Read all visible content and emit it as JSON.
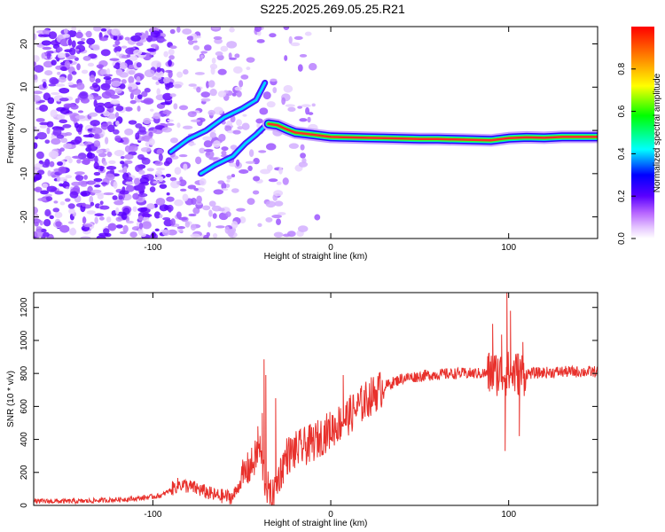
{
  "title": "S225.2025.269.05.25.R21",
  "chart_data": [
    {
      "type": "heatmap",
      "xlabel": "Height of straight line (km)",
      "ylabel": "Frequency (Hz)",
      "xlim": [
        -167,
        150
      ],
      "ylim": [
        -25,
        24
      ],
      "xticks": [
        -100,
        0,
        100
      ],
      "xtick_labels": [
        "-100",
        "0",
        "100"
      ],
      "yticks": [
        -20,
        -10,
        0,
        10,
        20
      ],
      "ytick_labels": [
        "-20",
        "-10",
        "0",
        "10",
        "20"
      ],
      "colorbar": {
        "label": "Normalized spectral amplitude",
        "range": [
          0,
          1
        ],
        "ticks": [
          0.0,
          0.2,
          0.4,
          0.6,
          0.8
        ],
        "tick_labels": [
          "0.0",
          "0.2",
          "0.4",
          "0.6",
          "0.8"
        ]
      },
      "signal_trace": [
        {
          "x": -35,
          "f": 1.5
        },
        {
          "x": -30,
          "f": 1.2
        },
        {
          "x": -25,
          "f": 0.3
        },
        {
          "x": -20,
          "f": -0.5
        },
        {
          "x": -10,
          "f": -1.0
        },
        {
          "x": 0,
          "f": -1.5
        },
        {
          "x": 10,
          "f": -1.6
        },
        {
          "x": 20,
          "f": -1.7
        },
        {
          "x": 30,
          "f": -1.8
        },
        {
          "x": 40,
          "f": -1.9
        },
        {
          "x": 50,
          "f": -2.0
        },
        {
          "x": 60,
          "f": -2.0
        },
        {
          "x": 70,
          "f": -2.1
        },
        {
          "x": 80,
          "f": -2.2
        },
        {
          "x": 90,
          "f": -2.3
        },
        {
          "x": 100,
          "f": -1.8
        },
        {
          "x": 110,
          "f": -1.6
        },
        {
          "x": 120,
          "f": -1.7
        },
        {
          "x": 130,
          "f": -1.5
        },
        {
          "x": 140,
          "f": -1.5
        },
        {
          "x": 150,
          "f": -1.5
        }
      ],
      "upper_arm": [
        {
          "x": -90,
          "f": -5
        },
        {
          "x": -80,
          "f": -2
        },
        {
          "x": -70,
          "f": 0
        },
        {
          "x": -60,
          "f": 3
        },
        {
          "x": -50,
          "f": 5
        },
        {
          "x": -42,
          "f": 7
        },
        {
          "x": -37,
          "f": 11
        }
      ],
      "lower_arm": [
        {
          "x": -73,
          "f": -10
        },
        {
          "x": -65,
          "f": -8
        },
        {
          "x": -55,
          "f": -6
        },
        {
          "x": -48,
          "f": -3
        },
        {
          "x": -42,
          "f": -1
        },
        {
          "x": -37,
          "f": 1
        }
      ]
    },
    {
      "type": "line",
      "xlabel": "Height of straight line (km)",
      "ylabel": "SNR (10 * v/v)",
      "xlim": [
        -167,
        150
      ],
      "ylim": [
        0,
        1290
      ],
      "xticks": [
        -100,
        0,
        100
      ],
      "xtick_labels": [
        "-100",
        "0",
        "100"
      ],
      "yticks": [
        0,
        200,
        400,
        600,
        800,
        1000,
        1200
      ],
      "ytick_labels": [
        "0",
        "200",
        "400",
        "600",
        "800",
        "1000",
        "1200"
      ],
      "series": [
        {
          "name": "SNR",
          "color": "#e8312c",
          "baseline": [
            {
              "x": -167,
              "y": 25
            },
            {
              "x": -140,
              "y": 25
            },
            {
              "x": -110,
              "y": 40
            },
            {
              "x": -95,
              "y": 60
            },
            {
              "x": -85,
              "y": 130
            },
            {
              "x": -75,
              "y": 100
            },
            {
              "x": -65,
              "y": 60
            },
            {
              "x": -55,
              "y": 50
            },
            {
              "x": -48,
              "y": 200
            },
            {
              "x": -44,
              "y": 250
            },
            {
              "x": -40,
              "y": 350
            },
            {
              "x": -37,
              "y": 150
            },
            {
              "x": -33,
              "y": 30
            },
            {
              "x": -30,
              "y": 150
            },
            {
              "x": -25,
              "y": 300
            },
            {
              "x": -20,
              "y": 330
            },
            {
              "x": -10,
              "y": 380
            },
            {
              "x": 0,
              "y": 460
            },
            {
              "x": 5,
              "y": 500
            },
            {
              "x": 12,
              "y": 560
            },
            {
              "x": 20,
              "y": 640
            },
            {
              "x": 30,
              "y": 720
            },
            {
              "x": 40,
              "y": 770
            },
            {
              "x": 55,
              "y": 790
            },
            {
              "x": 70,
              "y": 800
            },
            {
              "x": 90,
              "y": 800
            },
            {
              "x": 110,
              "y": 800
            },
            {
              "x": 130,
              "y": 810
            },
            {
              "x": 150,
              "y": 810
            }
          ],
          "spikes": [
            {
              "x": -37.5,
              "y": 885
            },
            {
              "x": -36.5,
              "y": 790
            },
            {
              "x": -38.5,
              "y": 560
            },
            {
              "x": -41,
              "y": 480
            },
            {
              "x": -31,
              "y": 650
            },
            {
              "x": 7,
              "y": 790
            },
            {
              "x": 91,
              "y": 1100
            },
            {
              "x": 96,
              "y": 1035
            },
            {
              "x": 98,
              "y": 330
            },
            {
              "x": 99,
              "y": 1300
            },
            {
              "x": 101,
              "y": 1180
            },
            {
              "x": 106,
              "y": 420
            },
            {
              "x": 108,
              "y": 990
            }
          ]
        }
      ]
    }
  ]
}
